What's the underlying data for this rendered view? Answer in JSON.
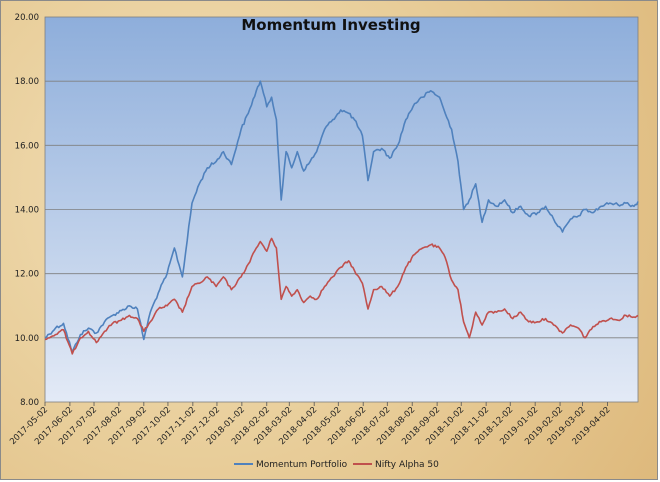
{
  "chart_data": {
    "type": "line",
    "title": "Momentum Investing",
    "xlabel": "",
    "ylabel": "",
    "ylim": [
      8,
      20
    ],
    "y_ticks": [
      "8.00",
      "10.00",
      "12.00",
      "14.00",
      "16.00",
      "18.00",
      "20.00"
    ],
    "x_tick_labels": [
      "2017-05-02",
      "2017-06-02",
      "2017-07-02",
      "2017-08-02",
      "2017-09-02",
      "2017-10-02",
      "2017-11-02",
      "2017-12-02",
      "2018-01-02",
      "2018-02-02",
      "2018-03-02",
      "2018-04-02",
      "2018-05-02",
      "2018-06-02",
      "2018-07-02",
      "2018-08-02",
      "2018-09-02",
      "2018-10-02",
      "2018-11-02",
      "2018-12-02",
      "2019-01-02",
      "2019-02-02",
      "2019-03-02",
      "2019-04-02"
    ],
    "x_range": [
      "2017-05-02",
      "2019-05-10"
    ],
    "grid": true,
    "legend_position": "bottom",
    "series": [
      {
        "name": "Momentum Portfolio",
        "color": "#4f81bd",
        "points": [
          [
            "2017-05-02",
            10.0
          ],
          [
            "2017-05-15",
            10.3
          ],
          [
            "2017-05-25",
            10.45
          ],
          [
            "2017-06-05",
            9.55
          ],
          [
            "2017-06-15",
            10.1
          ],
          [
            "2017-06-25",
            10.3
          ],
          [
            "2017-07-05",
            10.15
          ],
          [
            "2017-07-15",
            10.5
          ],
          [
            "2017-07-25",
            10.7
          ],
          [
            "2017-08-05",
            10.85
          ],
          [
            "2017-08-15",
            11.0
          ],
          [
            "2017-08-25",
            10.9
          ],
          [
            "2017-09-02",
            9.95
          ],
          [
            "2017-09-10",
            10.8
          ],
          [
            "2017-09-20",
            11.4
          ],
          [
            "2017-10-01",
            12.0
          ],
          [
            "2017-10-10",
            12.8
          ],
          [
            "2017-10-20",
            11.9
          ],
          [
            "2017-11-01",
            14.2
          ],
          [
            "2017-11-10",
            14.8
          ],
          [
            "2017-11-20",
            15.3
          ],
          [
            "2017-12-01",
            15.5
          ],
          [
            "2017-12-10",
            15.8
          ],
          [
            "2017-12-20",
            15.4
          ],
          [
            "2018-01-01",
            16.5
          ],
          [
            "2018-01-10",
            17.0
          ],
          [
            "2018-01-20",
            17.7
          ],
          [
            "2018-01-25",
            18.0
          ],
          [
            "2018-02-02",
            17.2
          ],
          [
            "2018-02-08",
            17.5
          ],
          [
            "2018-02-14",
            16.8
          ],
          [
            "2018-02-20",
            14.3
          ],
          [
            "2018-02-26",
            15.8
          ],
          [
            "2018-03-05",
            15.3
          ],
          [
            "2018-03-12",
            15.8
          ],
          [
            "2018-03-20",
            15.2
          ],
          [
            "2018-03-28",
            15.5
          ],
          [
            "2018-04-05",
            15.8
          ],
          [
            "2018-04-15",
            16.5
          ],
          [
            "2018-04-25",
            16.8
          ],
          [
            "2018-05-05",
            17.1
          ],
          [
            "2018-05-15",
            17.0
          ],
          [
            "2018-05-22",
            16.8
          ],
          [
            "2018-06-01",
            16.3
          ],
          [
            "2018-06-08",
            14.9
          ],
          [
            "2018-06-15",
            15.8
          ],
          [
            "2018-06-25",
            15.9
          ],
          [
            "2018-07-05",
            15.6
          ],
          [
            "2018-07-15",
            16.0
          ],
          [
            "2018-07-25",
            16.8
          ],
          [
            "2018-08-05",
            17.3
          ],
          [
            "2018-08-15",
            17.5
          ],
          [
            "2018-08-25",
            17.7
          ],
          [
            "2018-09-05",
            17.5
          ],
          [
            "2018-09-12",
            17.0
          ],
          [
            "2018-09-20",
            16.5
          ],
          [
            "2018-09-28",
            15.5
          ],
          [
            "2018-10-05",
            14.0
          ],
          [
            "2018-10-12",
            14.3
          ],
          [
            "2018-10-20",
            14.8
          ],
          [
            "2018-10-28",
            13.6
          ],
          [
            "2018-11-05",
            14.3
          ],
          [
            "2018-11-15",
            14.1
          ],
          [
            "2018-11-25",
            14.3
          ],
          [
            "2018-12-05",
            13.9
          ],
          [
            "2018-12-15",
            14.1
          ],
          [
            "2018-12-25",
            13.8
          ],
          [
            "2019-01-05",
            13.9
          ],
          [
            "2019-01-15",
            14.1
          ],
          [
            "2019-01-25",
            13.7
          ],
          [
            "2019-02-05",
            13.3
          ],
          [
            "2019-02-15",
            13.7
          ],
          [
            "2019-02-25",
            13.8
          ],
          [
            "2019-03-05",
            14.0
          ],
          [
            "2019-03-15",
            13.9
          ],
          [
            "2019-03-25",
            14.1
          ],
          [
            "2019-04-05",
            14.2
          ],
          [
            "2019-04-15",
            14.15
          ],
          [
            "2019-04-25",
            14.2
          ],
          [
            "2019-05-05",
            14.1
          ],
          [
            "2019-05-10",
            14.25
          ]
        ]
      },
      {
        "name": "Nifty Alpha 50",
        "color": "#c0504d",
        "points": [
          [
            "2017-05-02",
            9.95
          ],
          [
            "2017-05-15",
            10.1
          ],
          [
            "2017-05-25",
            10.25
          ],
          [
            "2017-06-05",
            9.5
          ],
          [
            "2017-06-15",
            10.0
          ],
          [
            "2017-06-25",
            10.2
          ],
          [
            "2017-07-05",
            9.85
          ],
          [
            "2017-07-15",
            10.2
          ],
          [
            "2017-07-25",
            10.45
          ],
          [
            "2017-08-05",
            10.55
          ],
          [
            "2017-08-15",
            10.7
          ],
          [
            "2017-08-25",
            10.6
          ],
          [
            "2017-09-02",
            10.2
          ],
          [
            "2017-09-10",
            10.5
          ],
          [
            "2017-09-20",
            10.9
          ],
          [
            "2017-10-01",
            11.0
          ],
          [
            "2017-10-10",
            11.2
          ],
          [
            "2017-10-20",
            10.8
          ],
          [
            "2017-11-01",
            11.6
          ],
          [
            "2017-11-10",
            11.7
          ],
          [
            "2017-11-20",
            11.9
          ],
          [
            "2017-12-01",
            11.6
          ],
          [
            "2017-12-10",
            11.9
          ],
          [
            "2017-12-20",
            11.5
          ],
          [
            "2018-01-01",
            11.9
          ],
          [
            "2018-01-10",
            12.3
          ],
          [
            "2018-01-20",
            12.8
          ],
          [
            "2018-01-25",
            13.0
          ],
          [
            "2018-02-02",
            12.7
          ],
          [
            "2018-02-08",
            13.1
          ],
          [
            "2018-02-14",
            12.8
          ],
          [
            "2018-02-20",
            11.2
          ],
          [
            "2018-02-26",
            11.6
          ],
          [
            "2018-03-05",
            11.3
          ],
          [
            "2018-03-12",
            11.5
          ],
          [
            "2018-03-20",
            11.1
          ],
          [
            "2018-03-28",
            11.3
          ],
          [
            "2018-04-05",
            11.2
          ],
          [
            "2018-04-15",
            11.6
          ],
          [
            "2018-04-25",
            11.9
          ],
          [
            "2018-05-05",
            12.2
          ],
          [
            "2018-05-15",
            12.4
          ],
          [
            "2018-05-22",
            12.1
          ],
          [
            "2018-06-01",
            11.7
          ],
          [
            "2018-06-08",
            10.9
          ],
          [
            "2018-06-15",
            11.5
          ],
          [
            "2018-06-25",
            11.6
          ],
          [
            "2018-07-05",
            11.3
          ],
          [
            "2018-07-15",
            11.6
          ],
          [
            "2018-07-25",
            12.2
          ],
          [
            "2018-08-05",
            12.6
          ],
          [
            "2018-08-15",
            12.8
          ],
          [
            "2018-08-25",
            12.9
          ],
          [
            "2018-09-05",
            12.8
          ],
          [
            "2018-09-12",
            12.5
          ],
          [
            "2018-09-20",
            11.8
          ],
          [
            "2018-09-28",
            11.5
          ],
          [
            "2018-10-05",
            10.5
          ],
          [
            "2018-10-12",
            10.0
          ],
          [
            "2018-10-20",
            10.8
          ],
          [
            "2018-10-28",
            10.4
          ],
          [
            "2018-11-05",
            10.8
          ],
          [
            "2018-11-15",
            10.8
          ],
          [
            "2018-11-25",
            10.9
          ],
          [
            "2018-12-05",
            10.6
          ],
          [
            "2018-12-15",
            10.8
          ],
          [
            "2018-12-25",
            10.5
          ],
          [
            "2019-01-05",
            10.5
          ],
          [
            "2019-01-15",
            10.6
          ],
          [
            "2019-01-25",
            10.4
          ],
          [
            "2019-02-05",
            10.15
          ],
          [
            "2019-02-15",
            10.4
          ],
          [
            "2019-02-25",
            10.3
          ],
          [
            "2019-03-05",
            10.0
          ],
          [
            "2019-03-15",
            10.35
          ],
          [
            "2019-03-25",
            10.5
          ],
          [
            "2019-04-05",
            10.6
          ],
          [
            "2019-04-15",
            10.55
          ],
          [
            "2019-04-25",
            10.7
          ],
          [
            "2019-05-05",
            10.65
          ],
          [
            "2019-05-10",
            10.7
          ]
        ]
      }
    ]
  }
}
